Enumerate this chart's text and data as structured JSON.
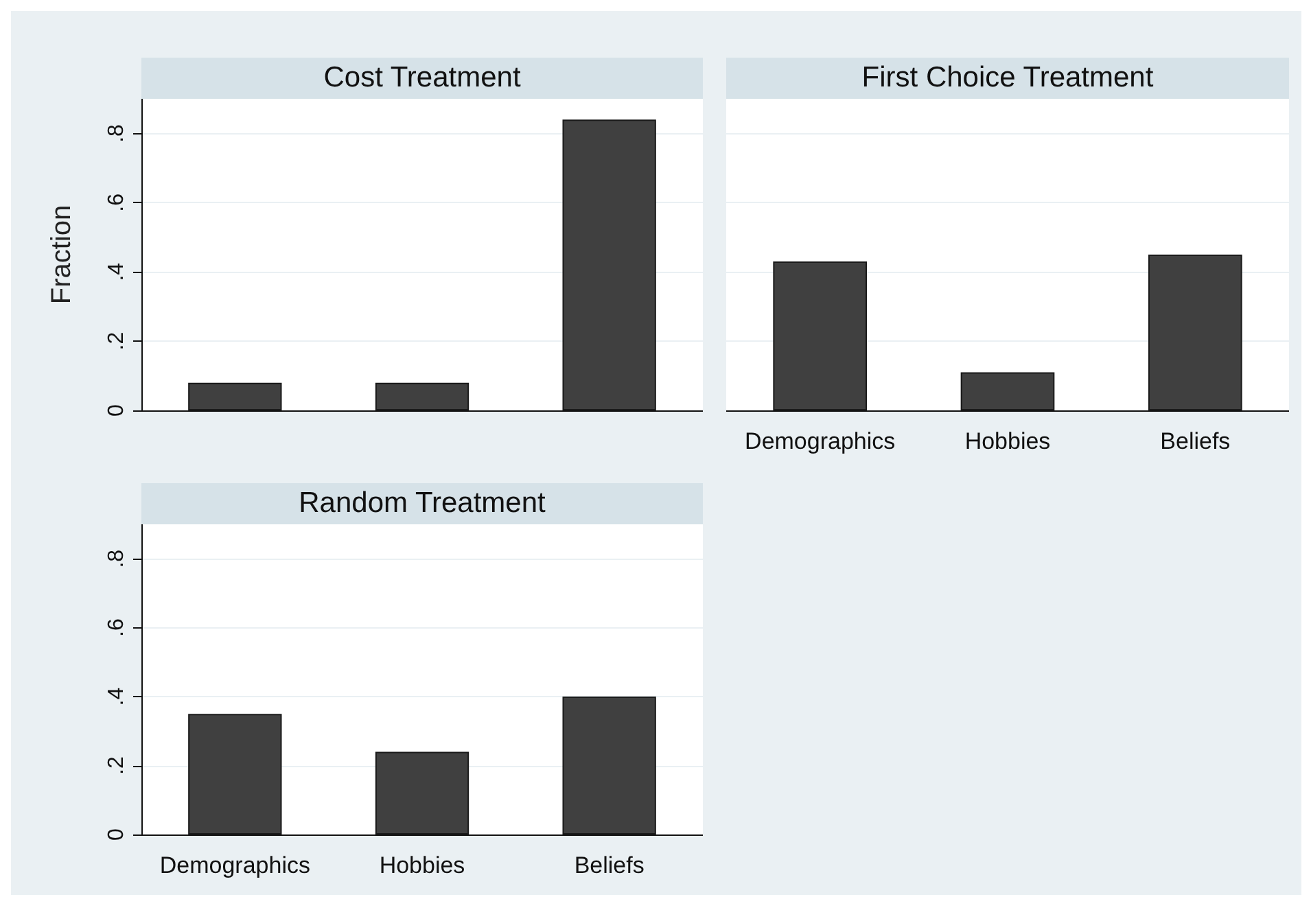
{
  "chart_data": [
    {
      "type": "bar",
      "title": "Cost Treatment",
      "ylabel": "Fraction",
      "categories": [
        null,
        null,
        null
      ],
      "values": [
        0.08,
        0.08,
        0.84
      ],
      "color": "#404040",
      "ylim": [
        0,
        0.9
      ],
      "yticks": [
        0,
        {
          "value": 0.2,
          "label": ".2"
        },
        {
          "value": 0.4,
          "label": ".4"
        },
        {
          "value": 0.6,
          "label": ".6"
        },
        {
          "value": 0.8,
          "label": ".8"
        }
      ],
      "grid": "y",
      "tick_labels": "y"
    },
    {
      "type": "bar",
      "title": "First Choice Treatment",
      "categories": [
        "Demographics",
        "Hobbies",
        "Beliefs"
      ],
      "values": [
        0.43,
        0.11,
        0.45
      ],
      "color": "#404040",
      "ylim": [
        0,
        0.9
      ],
      "yticks": [
        {
          "value": 0,
          "label": null
        },
        {
          "value": 0.2,
          "label": null
        },
        {
          "value": 0.4,
          "label": null
        },
        {
          "value": 0.6,
          "label": null
        },
        {
          "value": 0.8,
          "label": null
        }
      ],
      "grid": "y",
      "tick_labels": "x"
    },
    {
      "type": "bar",
      "title": "Random Treatment",
      "categories": [
        "Demographics",
        "Hobbies",
        "Beliefs"
      ],
      "values": [
        0.35,
        0.24,
        0.4
      ],
      "color": "#404040",
      "ylim": [
        0,
        0.9
      ],
      "yticks": [
        0,
        {
          "value": 0.2,
          "label": ".2"
        },
        {
          "value": 0.4,
          "label": ".4"
        },
        {
          "value": 0.6,
          "label": ".6"
        },
        {
          "value": 0.8,
          "label": ".8"
        }
      ],
      "grid": "y"
    }
  ]
}
